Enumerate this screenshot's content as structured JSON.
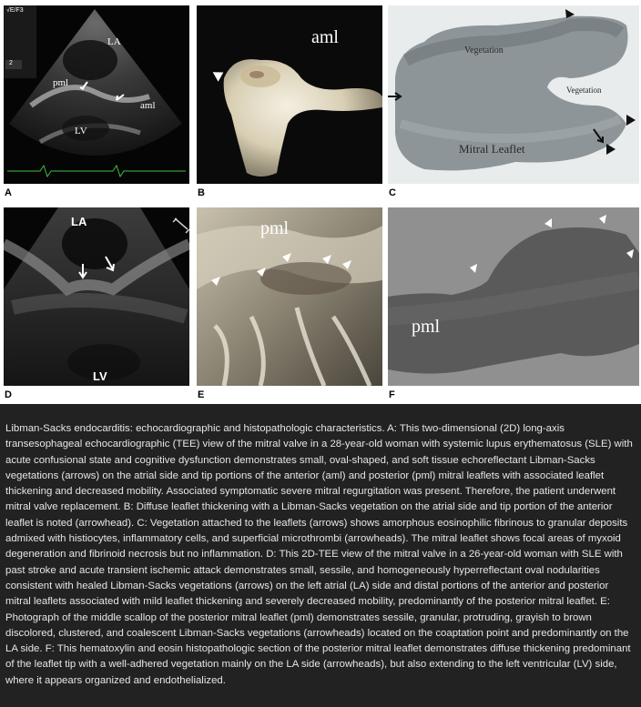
{
  "panels": {
    "A": {
      "label": "A",
      "la": "LA",
      "lv": "LV",
      "pml": "pml",
      "aml": "aml",
      "corner": "√E/F3",
      "scale": "2"
    },
    "B": {
      "label": "B",
      "aml": "aml"
    },
    "C": {
      "label": "C",
      "veg1": "Vegetation",
      "veg2": "Vegetation",
      "leaflet": "Mitral Leaflet"
    },
    "D": {
      "label": "D",
      "la": "LA",
      "lv": "LV"
    },
    "E": {
      "label": "E",
      "pml": "pml"
    },
    "F": {
      "label": "F",
      "pml": "pml"
    }
  },
  "caption": "Libman-Sacks endocarditis: echocardiographic and histopathologic characteristics. A: This two-dimensional (2D) long-axis transesophageal echocardiographic (TEE) view of the mitral valve in a 28-year-old woman with systemic lupus erythematosus (SLE) with acute confusional state and cognitive dysfunction demonstrates small, oval-shaped, and soft tissue echoreflectant Libman-Sacks vegetations (arrows) on the atrial side and tip portions of the anterior (aml) and posterior (pml) mitral leaflets with associated leaflet thickening and decreased mobility. Associated symptomatic severe mitral regurgitation was present. Therefore, the patient underwent mitral valve replacement. B: Diffuse leaflet thickening with a Libman-Sacks vegetation on the atrial side and tip portion of the anterior leaflet is noted (arrowhead). C: Vegetation attached to the leaflets (arrows) shows amorphous eosinophilic fibrinous to granular deposits admixed with histiocytes, inflammatory cells, and superficial microthrombi (arrowheads). The mitral leaflet shows focal areas of myxoid degeneration and fibrinoid necrosis but no inflammation. D: This 2D-TEE view of the mitral valve in a 26-year-old woman with SLE with past stroke and acute transient ischemic attack demonstrates small, sessile, and homogeneously hyperreflectant oval nodularities consistent with healed Libman-Sacks vegetations (arrows) on the left atrial (LA) side and distal portions of the anterior and posterior mitral leaflets associated with mild leaflet thickening and severely decreased mobility, predominantly of the posterior mitral leaflet. E: Photograph of the middle scallop of the posterior mitral leaflet (pml) demonstrates sessile, granular, protruding, grayish to brown discolored, clustered, and coalescent Libman-Sacks vegetations (arrowheads) located on the coaptation point and predominantly on the LA side. F: This hematoxylin and eosin histopathologic section of the posterior mitral leaflet demonstrates diffuse thickening predominant of the leaflet tip with a well-adhered vegetation mainly on the LA side (arrowheads), but also extending to the left ventricular (LV) side, where it appears organized and endothelialized."
}
